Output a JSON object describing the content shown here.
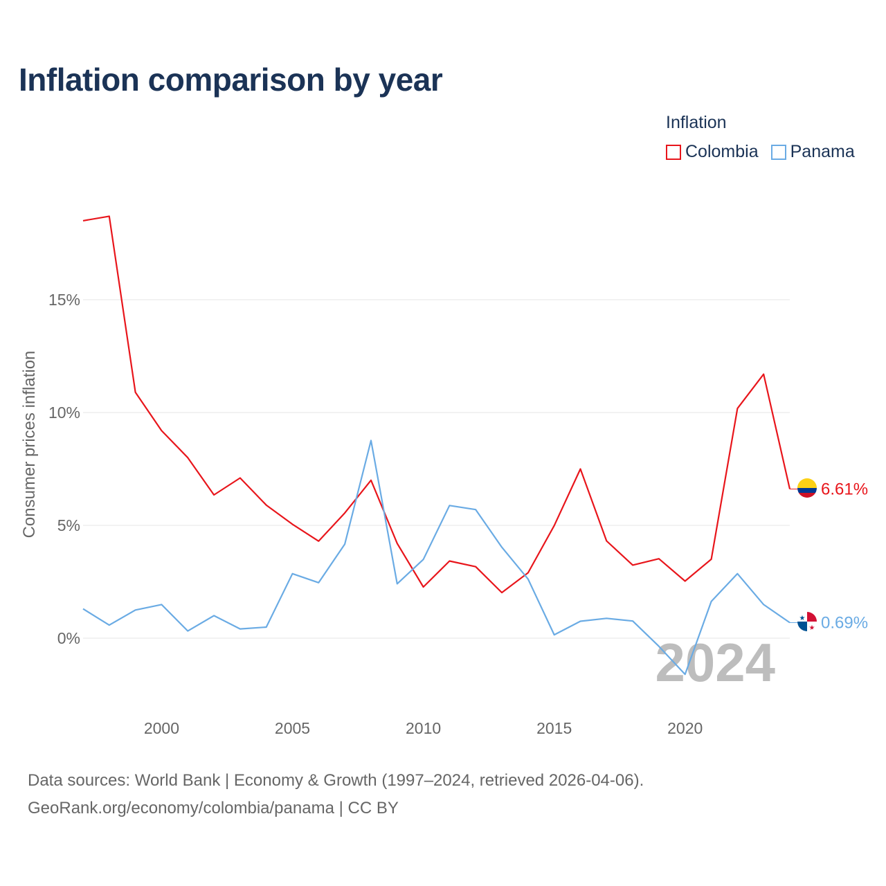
{
  "title": "Inflation comparison by year",
  "legend": {
    "title": "Inflation",
    "items": [
      {
        "label": "Colombia",
        "color": "#e8151b"
      },
      {
        "label": "Panama",
        "color": "#6aabe4"
      }
    ]
  },
  "year_watermark": "2024",
  "source": {
    "line1": "Data sources: World Bank | Economy & Growth (1997–2024, retrieved 2026-04-06).",
    "line2": "GeoRank.org/economy/colombia/panama | CC BY"
  },
  "chart_data": {
    "type": "line",
    "title": "Inflation comparison by year",
    "xlabel": "",
    "ylabel": "Consumer prices inflation",
    "x": [
      1997,
      1998,
      1999,
      2000,
      2001,
      2002,
      2003,
      2004,
      2005,
      2006,
      2007,
      2008,
      2009,
      2010,
      2011,
      2012,
      2013,
      2014,
      2015,
      2016,
      2017,
      2018,
      2019,
      2020,
      2021,
      2022,
      2023,
      2024
    ],
    "xticks": [
      2000,
      2005,
      2010,
      2015,
      2020
    ],
    "xtick_labels": [
      "2000",
      "2005",
      "2010",
      "2015",
      "2020"
    ],
    "yticks": [
      0,
      5,
      10,
      15
    ],
    "ytick_labels": [
      "0%",
      "5%",
      "10%",
      "15%"
    ],
    "xlim": [
      1997,
      2024
    ],
    "ylim": [
      -3,
      20
    ],
    "grid": true,
    "legend_position": "top-right",
    "series": [
      {
        "name": "Colombia",
        "color": "#e8151b",
        "end_label": "6.61%",
        "values": [
          18.5,
          18.7,
          10.9,
          9.2,
          8.0,
          6.35,
          7.1,
          5.9,
          5.05,
          4.3,
          5.55,
          7.0,
          4.2,
          2.27,
          3.42,
          3.17,
          2.02,
          2.9,
          4.99,
          7.5,
          4.31,
          3.24,
          3.52,
          2.53,
          3.5,
          10.18,
          11.7,
          6.61
        ]
      },
      {
        "name": "Panama",
        "color": "#6aabe4",
        "end_label": "0.69%",
        "values": [
          1.3,
          0.58,
          1.25,
          1.49,
          0.32,
          1.0,
          0.41,
          0.49,
          2.86,
          2.46,
          4.17,
          8.76,
          2.41,
          3.49,
          5.88,
          5.7,
          4.03,
          2.62,
          0.15,
          0.75,
          0.88,
          0.76,
          -0.36,
          -1.6,
          1.63,
          2.86,
          1.49,
          0.69
        ]
      }
    ]
  }
}
